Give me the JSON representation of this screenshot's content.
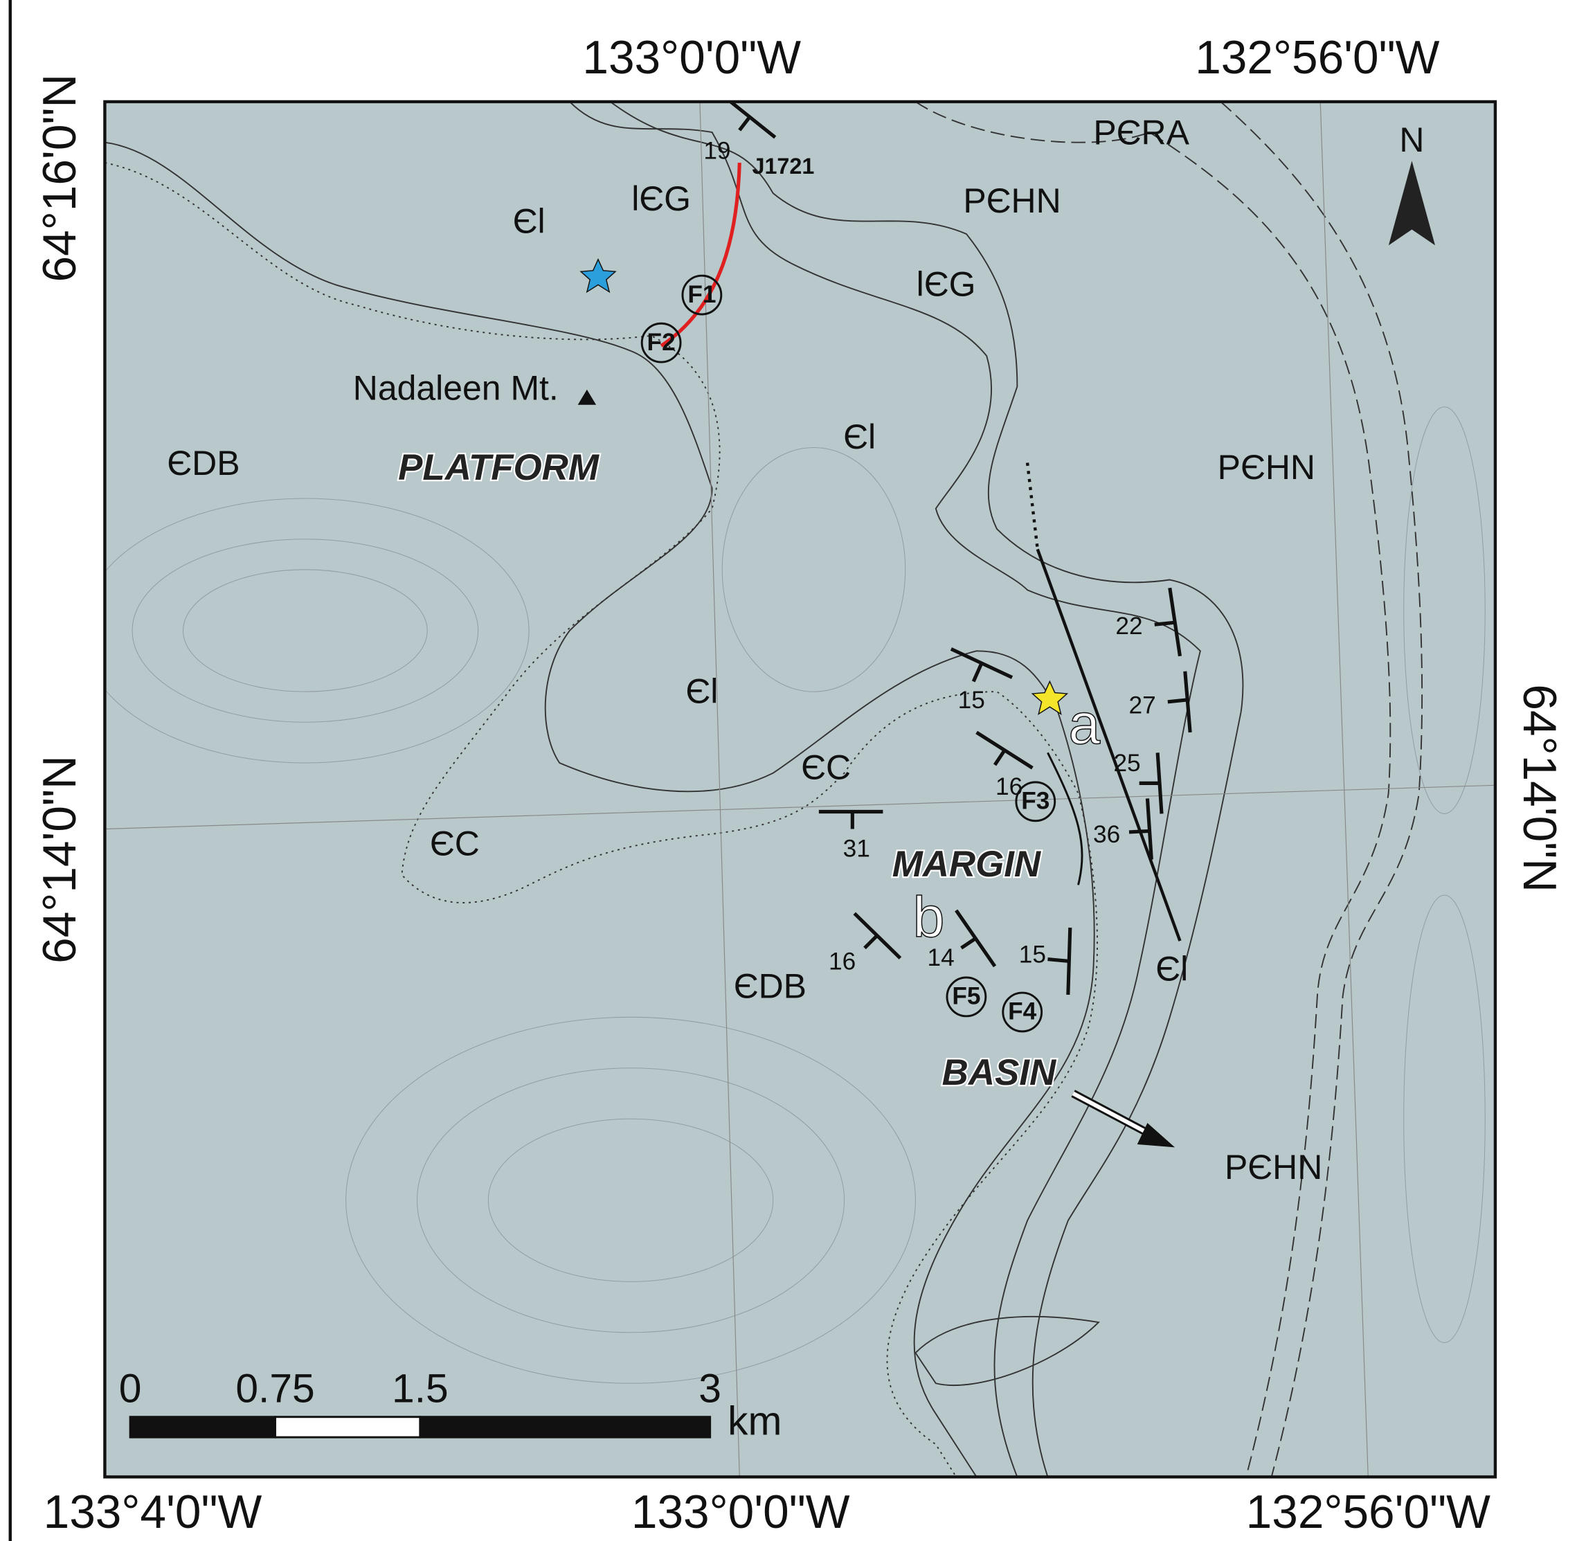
{
  "map": {
    "top_axis_labels": [
      "133°0'0\"W",
      "132°56'0\"W"
    ],
    "bottom_axis_labels": [
      "133°4'0\"W",
      "133°0'0\"W",
      "132°56'0\"W"
    ],
    "left_axis_labels": [
      "64°16'0\"N",
      "64°14'0\"N"
    ],
    "right_axis_labels": [
      "64°14'0\"N"
    ],
    "north_arrow": "N",
    "unit_labels": [
      "PЄRA",
      "PЄHN",
      "PЄHN",
      "PЄHN",
      "lЄG",
      "lЄG",
      "Єl",
      "Єl",
      "Єl",
      "Єl",
      "ЄC",
      "ЄC",
      "ЄDB",
      "ЄDB"
    ],
    "regions": [
      "PLATFORM",
      "MARGIN",
      "BASIN"
    ],
    "place": "Nadaleen Mt.",
    "section_label": "J1721",
    "fossil_sites": [
      "F1",
      "F2",
      "F3",
      "F4",
      "F5"
    ],
    "photo_labels": [
      "a",
      "b"
    ],
    "dips": [
      "19",
      "22",
      "15",
      "27",
      "25",
      "16",
      "36",
      "31",
      "16",
      "14",
      "15"
    ],
    "scale_bar": {
      "ticks": [
        0,
        0.75,
        1.5,
        3
      ],
      "unit": "km"
    }
  }
}
